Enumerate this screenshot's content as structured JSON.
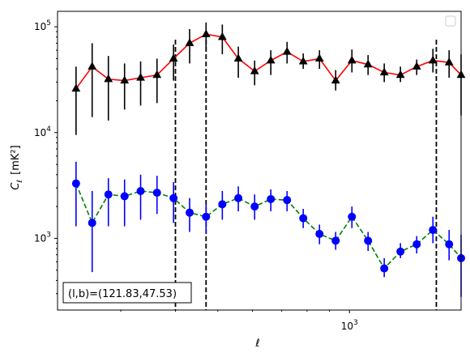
{
  "chart_data": {
    "type": "scatter",
    "xscale": "log",
    "yscale": "log",
    "xlabel": "ℓ",
    "ylabel_main": "C",
    "ylabel_sub": "ℓ",
    "ylabel_unit": "[mK²]",
    "xlim": [
      215,
      1800
    ],
    "ylim": [
      210,
      140000
    ],
    "x_tick_labels": [
      {
        "value": 1000,
        "base": "10",
        "exp": "3"
      }
    ],
    "y_tick_labels": [
      {
        "value": 1000,
        "base": "10",
        "exp": "3"
      },
      {
        "value": 10000,
        "base": "10",
        "exp": "4"
      },
      {
        "value": 100000,
        "base": "10",
        "exp": "5"
      }
    ],
    "vlines": [
      400,
      470,
      1580
    ],
    "annotation": "(l,b)=(121.83,47.53)",
    "legend": {
      "placement": "top-right",
      "entries": []
    },
    "colors": {
      "series1_line": "#ff0000",
      "series1_marker": "#000000",
      "series2_line": "#008000",
      "series2_marker": "#0000ff",
      "series2_err": "#0000ff",
      "vline": "#000000"
    },
    "series": [
      {
        "marker": "triangle",
        "linestyle": "solid",
        "x": [
          237,
          258,
          281,
          306,
          333,
          363,
          396,
          431,
          470,
          512,
          557,
          607,
          661,
          720,
          784,
          854,
          930,
          1013,
          1103,
          1201,
          1308,
          1425,
          1552,
          1690,
          1800
        ],
        "y": [
          26000,
          42000,
          32000,
          31000,
          33000,
          35000,
          50000,
          70000,
          85000,
          80000,
          50000,
          38000,
          48000,
          58000,
          47000,
          50000,
          31000,
          48000,
          44000,
          37000,
          35000,
          42000,
          48000,
          46000,
          35000
        ],
        "yerr_low": [
          9500,
          14000,
          13000,
          16500,
          18000,
          19000,
          31000,
          45000,
          59000,
          55000,
          33000,
          28000,
          35000,
          45000,
          40000,
          40000,
          25000,
          37000,
          35000,
          30000,
          30000,
          35000,
          37000,
          33000,
          14500
        ],
        "yerr_high": [
          42000,
          70000,
          53000,
          45000,
          47000,
          50000,
          68000,
          95000,
          110000,
          105000,
          65000,
          48000,
          60000,
          72000,
          56000,
          60000,
          39000,
          61000,
          54000,
          45000,
          42000,
          49000,
          62000,
          60000,
          55000
        ]
      },
      {
        "marker": "circle",
        "linestyle": "dashed",
        "x": [
          237,
          258,
          281,
          306,
          333,
          363,
          396,
          431,
          470,
          512,
          557,
          607,
          661,
          720,
          784,
          854,
          930,
          1013,
          1103,
          1201,
          1308,
          1425,
          1552,
          1690,
          1800
        ],
        "y": [
          3300,
          1400,
          2600,
          2500,
          2800,
          2700,
          2400,
          1750,
          1600,
          2100,
          2400,
          2000,
          2350,
          2300,
          1550,
          1100,
          950,
          1600,
          950,
          520,
          750,
          880,
          1200,
          880,
          650
        ],
        "yerr_low": [
          1300,
          480,
          1300,
          1300,
          1500,
          1700,
          1400,
          1150,
          1100,
          1500,
          1800,
          1500,
          1800,
          1800,
          1250,
          880,
          780,
          1250,
          760,
          430,
          650,
          720,
          900,
          620,
          280
        ],
        "yerr_high": [
          5300,
          2800,
          3700,
          3600,
          4000,
          3900,
          3400,
          2400,
          2100,
          2800,
          3100,
          2600,
          2900,
          2800,
          1900,
          1350,
          1150,
          2000,
          1150,
          650,
          900,
          1050,
          1600,
          1200,
          1080
        ]
      }
    ]
  }
}
